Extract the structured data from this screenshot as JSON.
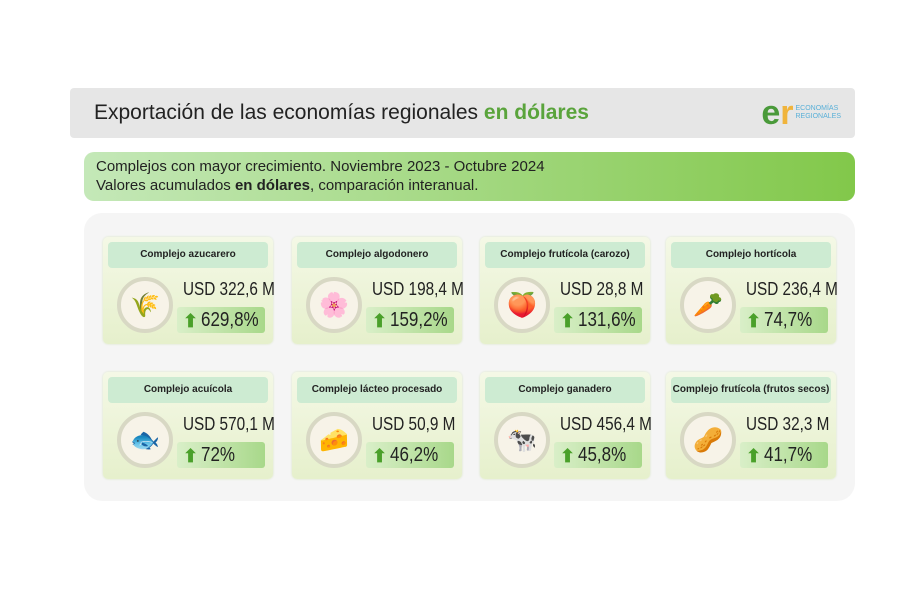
{
  "header": {
    "title": "Exportación de las economías regionales ",
    "title_highlight": "en dólares",
    "logo_line1": "ECONOMÍAS",
    "logo_line2": "REGIONALES"
  },
  "banner": {
    "line1": "Complejos con mayor crecimiento. Noviembre 2023 - Octubre 2024",
    "line2_pre": "Valores acumulados ",
    "line2_bold": "en dólares",
    "line2_post": ", comparación interanual."
  },
  "cards": [
    {
      "title": "Complejo azucarero",
      "value": "USD 322,6 M",
      "growth": "629,8%",
      "icon": "🌾"
    },
    {
      "title": "Complejo algodonero",
      "value": "USD 198,4 M",
      "growth": "159,2%",
      "icon": "🌸"
    },
    {
      "title": "Complejo frutícola (carozo)",
      "value": "USD 28,8 M",
      "growth": "131,6%",
      "icon": "🍑"
    },
    {
      "title": "Complejo hortícola",
      "value": "USD 236,4 M",
      "growth": "74,7%",
      "icon": "🥕"
    },
    {
      "title": "Complejo acuícola",
      "value": "USD 570,1 M",
      "growth": "72%",
      "icon": "🐟"
    },
    {
      "title": "Complejo lácteo procesado",
      "value": "USD 50,9 M",
      "growth": "46,2%",
      "icon": "🧀"
    },
    {
      "title": "Complejo ganadero",
      "value": "USD 456,4 M",
      "growth": "45,8%",
      "icon": "🐄"
    },
    {
      "title": "Complejo frutícola (frutos secos)",
      "value": "USD 32,3 M",
      "growth": "41,7%",
      "icon": "🥜"
    }
  ],
  "arrow": "⬆"
}
